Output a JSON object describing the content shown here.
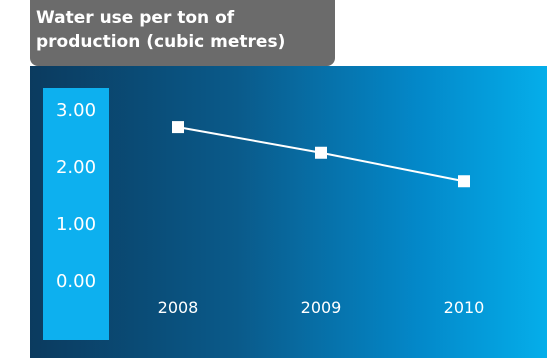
{
  "chart_data": {
    "type": "line",
    "title_lines": [
      "Water use per ton of",
      "production (cubic metres)"
    ],
    "categories": [
      "2008",
      "2009",
      "2010"
    ],
    "series": [
      {
        "values": [
          2.7,
          2.25,
          1.75
        ]
      }
    ],
    "y_ticks": [
      "3.00",
      "2.00",
      "1.00",
      "0.00"
    ],
    "y_tick_values": [
      3,
      2,
      1,
      0
    ],
    "ylim": [
      0,
      3
    ],
    "grid": false,
    "colors": {
      "title_tab": "#6b6b6b",
      "axis_bar": "#0db0ef",
      "line": "#ffffff",
      "markers": "#ffffff",
      "text": "#ffffff"
    }
  }
}
